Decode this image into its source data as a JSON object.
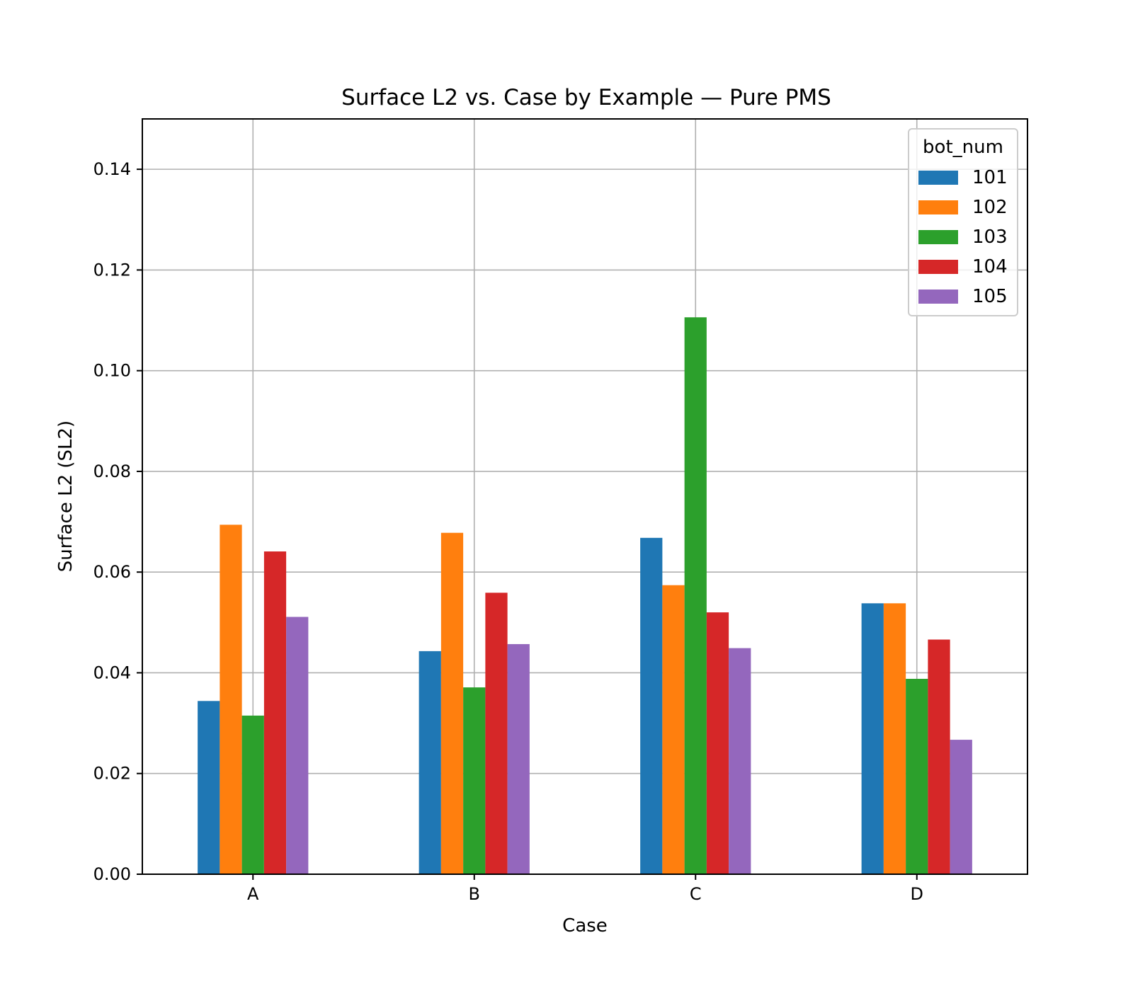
{
  "chart_data": {
    "type": "bar",
    "title": "Surface L2 vs. Case by Example — Pure PMS",
    "xlabel": "Case",
    "ylabel": "Surface L2 (SL2)",
    "categories": [
      "A",
      "B",
      "C",
      "D"
    ],
    "ylim": [
      0,
      0.15
    ],
    "yticks": [
      0.0,
      0.02,
      0.04,
      0.06,
      0.08,
      0.1,
      0.12,
      0.14
    ],
    "ytick_labels": [
      "0.00",
      "0.02",
      "0.04",
      "0.06",
      "0.08",
      "0.10",
      "0.12",
      "0.14"
    ],
    "grid": true,
    "legend": {
      "title": "bot_num",
      "placement": "top-right"
    },
    "series": [
      {
        "name": "101",
        "color": "#1f77b4",
        "values": [
          0.0344,
          0.0443,
          0.0668,
          0.0538
        ]
      },
      {
        "name": "102",
        "color": "#ff7f0e",
        "values": [
          0.0694,
          0.0678,
          0.0574,
          0.0538
        ]
      },
      {
        "name": "103",
        "color": "#2ca02c",
        "values": [
          0.0315,
          0.0371,
          0.1106,
          0.0388
        ]
      },
      {
        "name": "104",
        "color": "#d62728",
        "values": [
          0.0641,
          0.0559,
          0.052,
          0.0466
        ]
      },
      {
        "name": "105",
        "color": "#9467bd",
        "values": [
          0.0511,
          0.0457,
          0.0449,
          0.0267
        ]
      }
    ]
  }
}
